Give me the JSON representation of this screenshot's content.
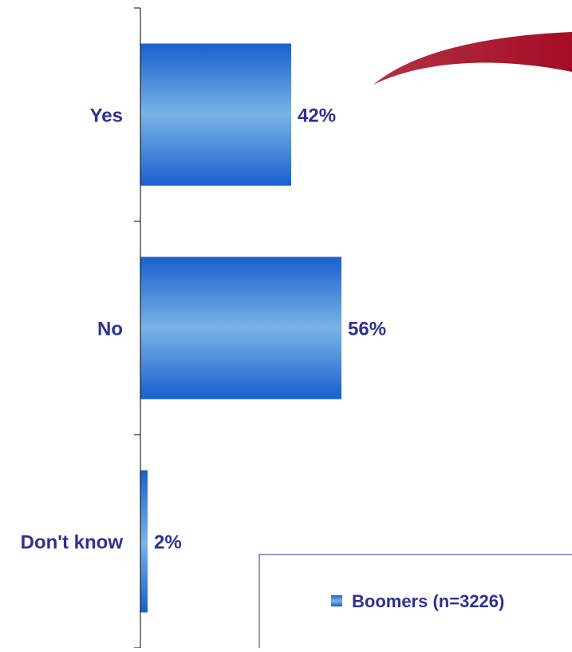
{
  "chart_data": {
    "type": "bar",
    "orientation": "horizontal",
    "categories": [
      "Yes",
      "No",
      "Don't know"
    ],
    "series": [
      {
        "name": "Boomers (n=3226)",
        "values": [
          42,
          56,
          2
        ]
      }
    ],
    "value_labels": [
      "42%",
      "56%",
      "2%"
    ],
    "title": "",
    "xlabel": "",
    "ylabel": "",
    "xlim": [
      0,
      100
    ],
    "grid": false,
    "legend": "bottom-right"
  },
  "colors": {
    "bar_edge": "#1a5fcf",
    "bar_center": "#78b4e6",
    "axis": "#000000",
    "text": "#2e3192",
    "swoosh": "#a50d25",
    "legend_border": "#2e3192"
  },
  "legend": {
    "label": "Boomers (n=3226)"
  },
  "decoration": {
    "swoosh": "swoosh-graphic"
  }
}
